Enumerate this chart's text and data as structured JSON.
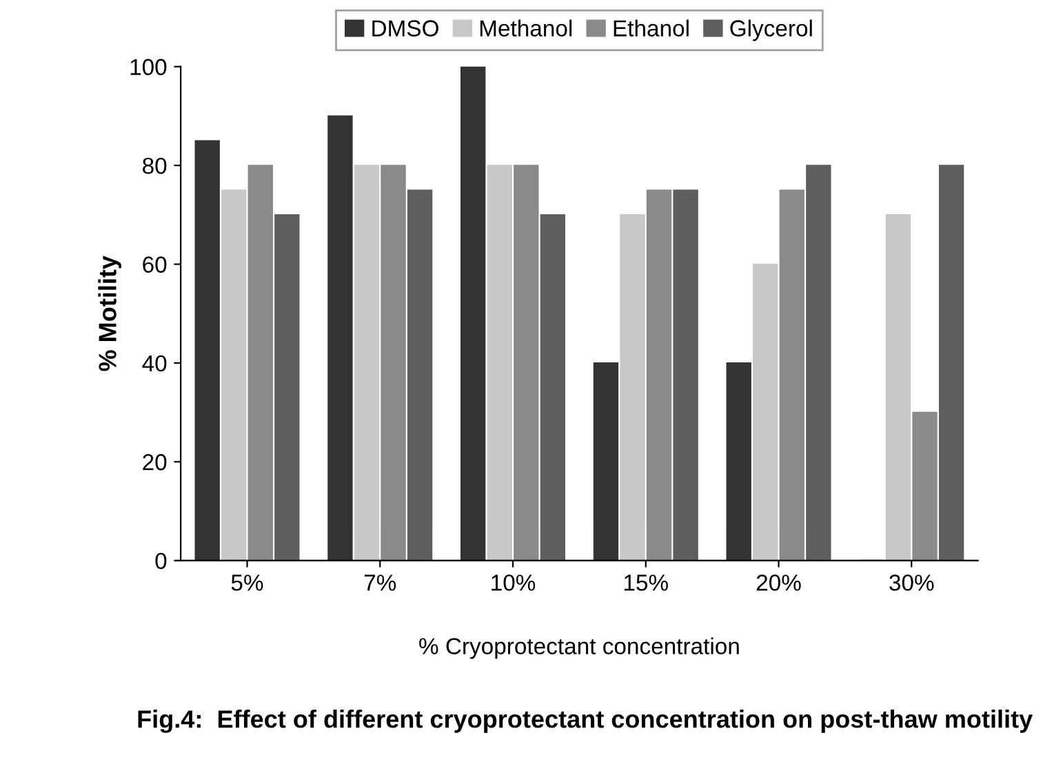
{
  "chart_data": {
    "type": "bar",
    "title": "Fig.4:  Effect of different cryoprotectant concentration on post-thaw motility",
    "xlabel": "% Cryoprotectant concentration",
    "ylabel": "% Motility",
    "categories": [
      "5%",
      "7%",
      "10%",
      "15%",
      "20%",
      "30%"
    ],
    "series": [
      {
        "name": "DMSO",
        "color": "#333333",
        "values": [
          85,
          90,
          100,
          40,
          40,
          0
        ]
      },
      {
        "name": "Methanol",
        "color": "#c8c8c8",
        "values": [
          75,
          80,
          80,
          70,
          60,
          70
        ]
      },
      {
        "name": "Ethanol",
        "color": "#8a8a8a",
        "values": [
          80,
          80,
          80,
          75,
          75,
          30
        ]
      },
      {
        "name": "Glycerol",
        "color": "#5e5e5e",
        "values": [
          70,
          75,
          70,
          75,
          80,
          80
        ]
      }
    ],
    "ylim": [
      0,
      100
    ],
    "yticks": [
      0,
      20,
      40,
      60,
      80,
      100
    ],
    "grid": false,
    "legend": "top"
  }
}
